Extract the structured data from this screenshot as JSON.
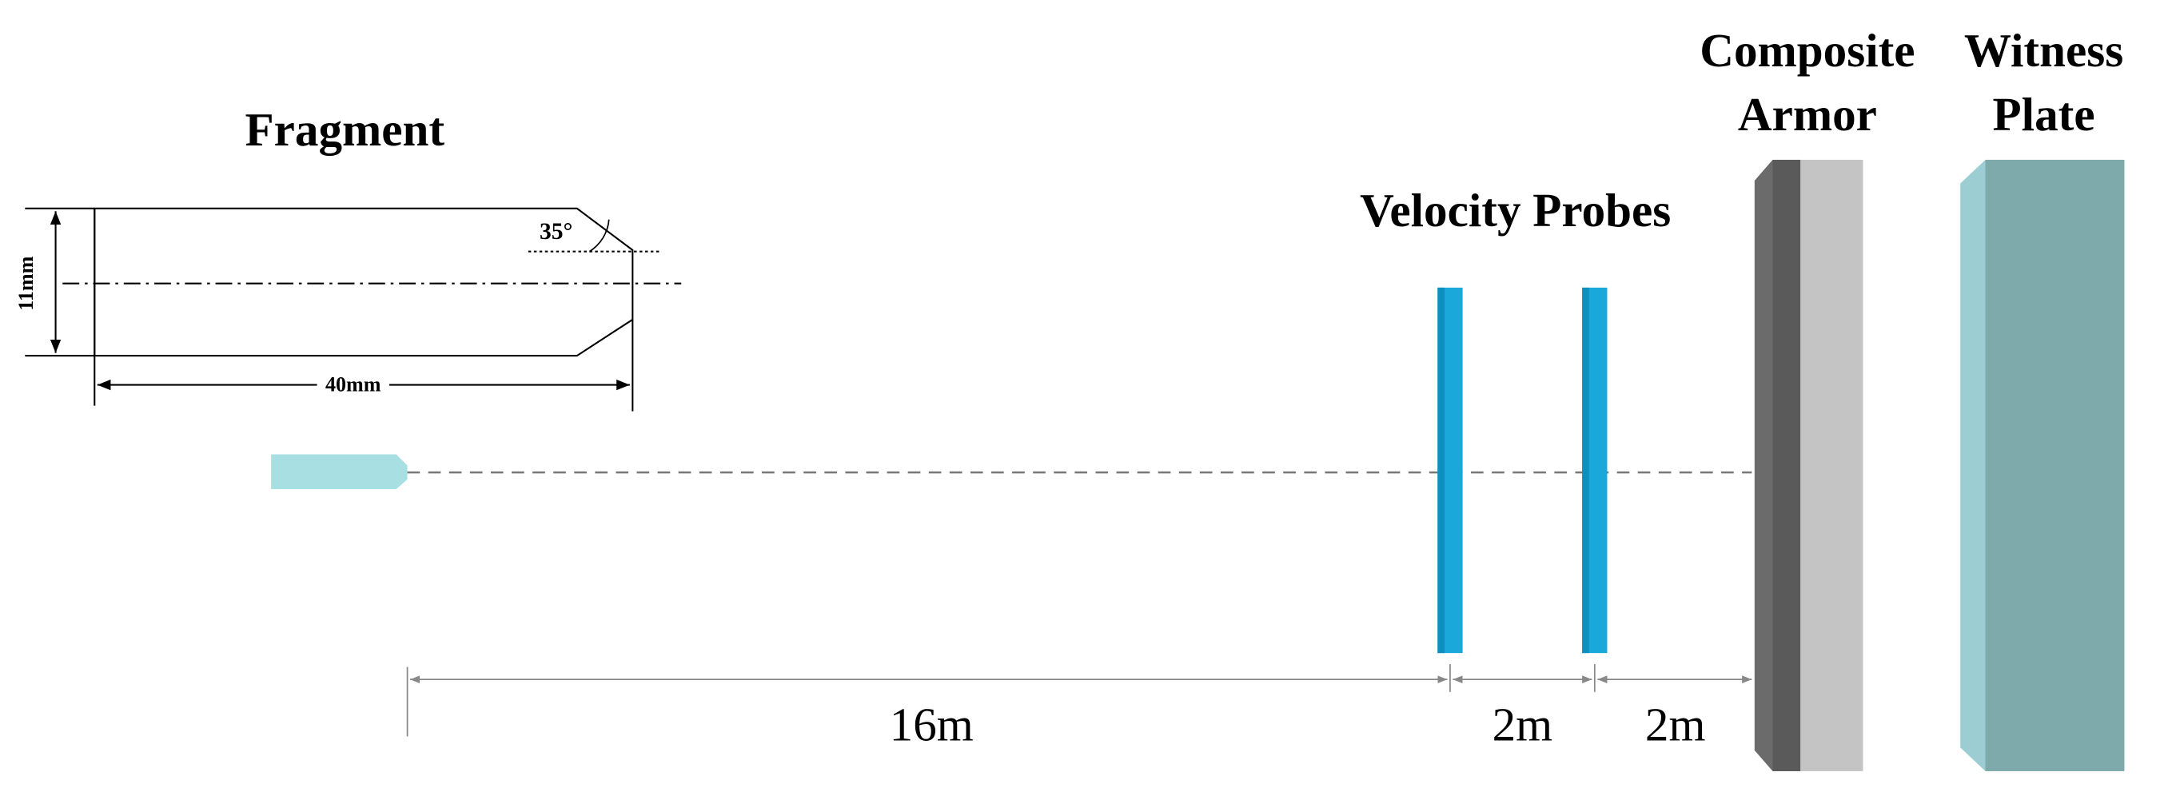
{
  "fragment": {
    "title": "Fragment",
    "angle": "35°",
    "diameter": "11mm",
    "length": "40mm"
  },
  "probes": {
    "label": "Velocity Probes"
  },
  "armor": {
    "label_line1": "Composite",
    "label_line2": "Armor"
  },
  "witness": {
    "label_line1": "Witness",
    "label_line2": "Plate"
  },
  "distances": [
    "16m",
    "2m",
    "2m"
  ]
}
